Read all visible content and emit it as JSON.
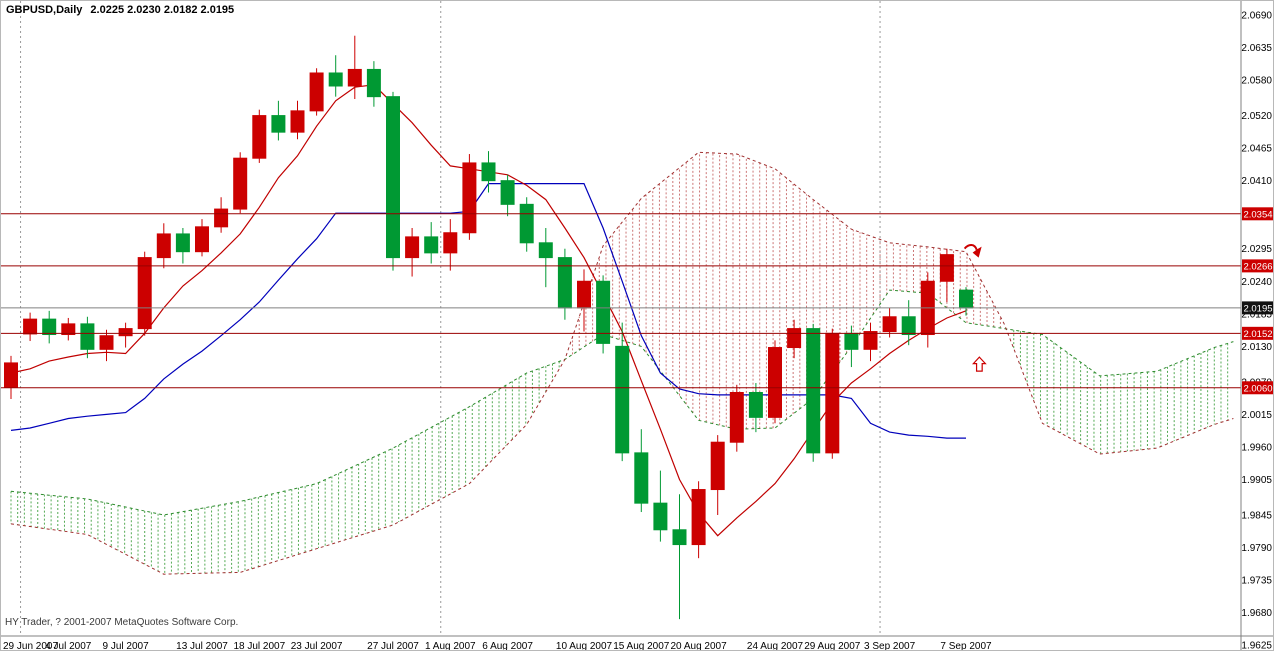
{
  "window": {
    "title_symbol": "GBPUSD,Daily",
    "title_ohlc": "2.0225 2.0230 2.0182 2.0195"
  },
  "footer": {
    "copyright": "HY Trader, ? 2001-2007 MetaQuotes Software Corp."
  },
  "colors": {
    "background": "#ffffff",
    "up": "#cc0000",
    "down": "#009933",
    "tenkan": "#c00000",
    "kijun": "#0000bb",
    "span_a": "#2e8b2e",
    "span_b": "#a03030",
    "hatch_up": "#55aa55",
    "hatch_down": "#cc7777",
    "sr_line": "#990000",
    "bid_line": "#808080",
    "badge_red": "#cc0000",
    "badge_dark": "#111111",
    "separator": "#999999",
    "axis_line": "#808080",
    "axis_text": "#000000"
  },
  "chart_data": {
    "type": "candlestick",
    "symbol": "GBPUSD",
    "timeframe": "Daily",
    "indicator": "Ichimoku Kinko Hyo",
    "title": "GBPUSD,Daily",
    "current_bar": {
      "open": 2.0225,
      "high": 2.023,
      "low": 2.0182,
      "close": 2.0195
    },
    "ylim": [
      1.9625,
      2.069
    ],
    "grid": "off",
    "legend": "none",
    "price_ticks": [
      {
        "p": 2.069,
        "label": "2.0690"
      },
      {
        "p": 2.0635,
        "label": "2.0635"
      },
      {
        "p": 2.058,
        "label": "2.0580"
      },
      {
        "p": 2.052,
        "label": "2.0520"
      },
      {
        "p": 2.0465,
        "label": "2.0465"
      },
      {
        "p": 2.041,
        "label": "2.0410"
      },
      {
        "p": 2.035,
        "label": "2.0350"
      },
      {
        "p": 2.0295,
        "label": "2.0295"
      },
      {
        "p": 2.024,
        "label": "2.0240"
      },
      {
        "p": 2.0185,
        "label": "2.0185"
      },
      {
        "p": 2.013,
        "label": "2.0130"
      },
      {
        "p": 2.007,
        "label": "2.0070"
      },
      {
        "p": 2.0015,
        "label": "2.0015"
      },
      {
        "p": 1.996,
        "label": "1.9960"
      },
      {
        "p": 1.9905,
        "label": "1.9905"
      },
      {
        "p": 1.9845,
        "label": "1.9845"
      },
      {
        "p": 1.979,
        "label": "1.9790"
      },
      {
        "p": 1.9735,
        "label": "1.9735"
      },
      {
        "p": 1.968,
        "label": "1.9680"
      },
      {
        "p": 1.9625,
        "label": "1.9625"
      }
    ],
    "date_labels": [
      {
        "bar": 0,
        "label": "29 Jun 2007"
      },
      {
        "bar": 3,
        "label": "4 Jul 2007"
      },
      {
        "bar": 6,
        "label": "9 Jul 2007"
      },
      {
        "bar": 10,
        "label": "13 Jul 2007"
      },
      {
        "bar": 13,
        "label": "18 Jul 2007"
      },
      {
        "bar": 16,
        "label": "23 Jul 2007"
      },
      {
        "bar": 20,
        "label": "27 Jul 2007"
      },
      {
        "bar": 23,
        "label": "1 Aug 2007"
      },
      {
        "bar": 26,
        "label": "6 Aug 2007"
      },
      {
        "bar": 30,
        "label": "10 Aug 2007"
      },
      {
        "bar": 33,
        "label": "15 Aug 2007"
      },
      {
        "bar": 36,
        "label": "20 Aug 2007"
      },
      {
        "bar": 40,
        "label": "24 Aug 2007"
      },
      {
        "bar": 43,
        "label": "29 Aug 2007"
      },
      {
        "bar": 46,
        "label": "3 Sep 2007"
      },
      {
        "bar": 50,
        "label": "7 Sep 2007"
      }
    ],
    "candles": [
      {
        "d": "29 Jun 2007",
        "o": 2.0061,
        "h": 2.0114,
        "l": 2.0041,
        "c": 2.0102
      },
      {
        "d": "2 Jul 2007",
        "o": 2.0151,
        "h": 2.0187,
        "l": 2.0139,
        "c": 2.0176
      },
      {
        "d": "3 Jul 2007",
        "o": 2.0176,
        "h": 2.019,
        "l": 2.0135,
        "c": 2.015
      },
      {
        "d": "4 Jul 2007",
        "o": 2.015,
        "h": 2.0178,
        "l": 2.014,
        "c": 2.0168
      },
      {
        "d": "5 Jul 2007",
        "o": 2.0168,
        "h": 2.018,
        "l": 2.011,
        "c": 2.0125
      },
      {
        "d": "6 Jul 2007",
        "o": 2.0125,
        "h": 2.0158,
        "l": 2.0105,
        "c": 2.0148
      },
      {
        "d": "9 Jul 2007",
        "o": 2.0148,
        "h": 2.017,
        "l": 2.0128,
        "c": 2.016
      },
      {
        "d": "10 Jul 2007",
        "o": 2.016,
        "h": 2.029,
        "l": 2.0148,
        "c": 2.028
      },
      {
        "d": "11 Jul 2007",
        "o": 2.028,
        "h": 2.0338,
        "l": 2.0262,
        "c": 2.032
      },
      {
        "d": "12 Jul 2007",
        "o": 2.032,
        "h": 2.033,
        "l": 2.027,
        "c": 2.029
      },
      {
        "d": "13 Jul 2007",
        "o": 2.029,
        "h": 2.0345,
        "l": 2.0282,
        "c": 2.0332
      },
      {
        "d": "16 Jul 2007",
        "o": 2.0332,
        "h": 2.0382,
        "l": 2.0322,
        "c": 2.0362
      },
      {
        "d": "17 Jul 2007",
        "o": 2.0362,
        "h": 2.0458,
        "l": 2.0355,
        "c": 2.0448
      },
      {
        "d": "18 Jul 2007",
        "o": 2.0448,
        "h": 2.053,
        "l": 2.044,
        "c": 2.052
      },
      {
        "d": "19 Jul 2007",
        "o": 2.052,
        "h": 2.0545,
        "l": 2.0478,
        "c": 2.0492
      },
      {
        "d": "20 Jul 2007",
        "o": 2.0492,
        "h": 2.0545,
        "l": 2.048,
        "c": 2.0528
      },
      {
        "d": "23 Jul 2007",
        "o": 2.0528,
        "h": 2.06,
        "l": 2.052,
        "c": 2.0592
      },
      {
        "d": "24 Jul 2007",
        "o": 2.0592,
        "h": 2.0622,
        "l": 2.0552,
        "c": 2.057
      },
      {
        "d": "25 Jul 2007",
        "o": 2.057,
        "h": 2.0655,
        "l": 2.0548,
        "c": 2.0598
      },
      {
        "d": "26 Jul 2007",
        "o": 2.0598,
        "h": 2.0612,
        "l": 2.0535,
        "c": 2.0552
      },
      {
        "d": "27 Jul 2007",
        "o": 2.0552,
        "h": 2.056,
        "l": 2.0258,
        "c": 2.028
      },
      {
        "d": "30 Jul 2007",
        "o": 2.028,
        "h": 2.033,
        "l": 2.0248,
        "c": 2.0315
      },
      {
        "d": "31 Jul 2007",
        "o": 2.0315,
        "h": 2.034,
        "l": 2.027,
        "c": 2.0288
      },
      {
        "d": "1 Aug 2007",
        "o": 2.0288,
        "h": 2.0345,
        "l": 2.0258,
        "c": 2.0322
      },
      {
        "d": "2 Aug 2007",
        "o": 2.0322,
        "h": 2.0455,
        "l": 2.031,
        "c": 2.044
      },
      {
        "d": "3 Aug 2007",
        "o": 2.044,
        "h": 2.046,
        "l": 2.039,
        "c": 2.041
      },
      {
        "d": "6 Aug 2007",
        "o": 2.041,
        "h": 2.042,
        "l": 2.035,
        "c": 2.037
      },
      {
        "d": "7 Aug 2007",
        "o": 2.037,
        "h": 2.0382,
        "l": 2.029,
        "c": 2.0305
      },
      {
        "d": "8 Aug 2007",
        "o": 2.0305,
        "h": 2.033,
        "l": 2.023,
        "c": 2.028
      },
      {
        "d": "9 Aug 2007",
        "o": 2.028,
        "h": 2.0295,
        "l": 2.0175,
        "c": 2.0195
      },
      {
        "d": "10 Aug 2007",
        "o": 2.0195,
        "h": 2.026,
        "l": 2.0155,
        "c": 2.024
      },
      {
        "d": "13 Aug 2007",
        "o": 2.024,
        "h": 2.025,
        "l": 2.0118,
        "c": 2.0135
      },
      {
        "d": "14 Aug 2007",
        "o": 2.013,
        "h": 2.017,
        "l": 1.9936,
        "c": 1.995
      },
      {
        "d": "15 Aug 2007",
        "o": 1.995,
        "h": 1.999,
        "l": 1.985,
        "c": 1.9865
      },
      {
        "d": "16 Aug 2007",
        "o": 1.9865,
        "h": 1.992,
        "l": 1.98,
        "c": 1.982
      },
      {
        "d": "17 Aug 2007",
        "o": 1.982,
        "h": 1.988,
        "l": 1.9669,
        "c": 1.9795
      },
      {
        "d": "20 Aug 2007",
        "o": 1.9795,
        "h": 1.9902,
        "l": 1.9772,
        "c": 1.9888
      },
      {
        "d": "21 Aug 2007",
        "o": 1.9888,
        "h": 1.998,
        "l": 1.9845,
        "c": 1.9968
      },
      {
        "d": "22 Aug 2007",
        "o": 1.9968,
        "h": 2.0065,
        "l": 1.9952,
        "c": 2.0052
      },
      {
        "d": "23 Aug 2007",
        "o": 2.0052,
        "h": 2.0068,
        "l": 1.9985,
        "c": 2.001
      },
      {
        "d": "24 Aug 2007",
        "o": 2.001,
        "h": 2.014,
        "l": 2.0,
        "c": 2.0128
      },
      {
        "d": "27 Aug 2007",
        "o": 2.0128,
        "h": 2.0175,
        "l": 2.011,
        "c": 2.016
      },
      {
        "d": "28 Aug 2007",
        "o": 2.016,
        "h": 2.0168,
        "l": 1.9935,
        "c": 1.995
      },
      {
        "d": "29 Aug 2007",
        "o": 1.995,
        "h": 2.016,
        "l": 1.994,
        "c": 2.0152
      },
      {
        "d": "30 Aug 2007",
        "o": 2.0152,
        "h": 2.0165,
        "l": 2.0095,
        "c": 2.0125
      },
      {
        "d": "31 Aug 2007",
        "o": 2.0125,
        "h": 2.017,
        "l": 2.0105,
        "c": 2.0155
      },
      {
        "d": "3 Sep 2007",
        "o": 2.0155,
        "h": 2.0195,
        "l": 2.0145,
        "c": 2.018
      },
      {
        "d": "4 Sep 2007",
        "o": 2.018,
        "h": 2.0208,
        "l": 2.0132,
        "c": 2.015
      },
      {
        "d": "5 Sep 2007",
        "o": 2.015,
        "h": 2.0255,
        "l": 2.0128,
        "c": 2.024
      },
      {
        "d": "6 Sep 2007",
        "o": 2.024,
        "h": 2.0295,
        "l": 2.0205,
        "c": 2.0285
      },
      {
        "d": "7 Sep 2007",
        "o": 2.0225,
        "h": 2.023,
        "l": 2.0182,
        "c": 2.0195
      }
    ],
    "ichimoku": {
      "tenkan": [
        2.0085,
        2.0092,
        2.0105,
        2.0112,
        2.0118,
        2.012,
        2.0118,
        2.0152,
        2.0195,
        2.0232,
        2.0258,
        2.0288,
        2.032,
        2.0365,
        2.0415,
        2.0452,
        2.0502,
        2.0545,
        2.0568,
        2.0572,
        2.054,
        2.0508,
        2.047,
        2.0435,
        2.043,
        2.0425,
        2.042,
        2.0402,
        2.0378,
        2.033,
        2.028,
        2.0218,
        2.0155,
        2.0072,
        1.999,
        1.9905,
        1.9848,
        1.981,
        1.984,
        1.9868,
        1.9898,
        1.994,
        1.9988,
        2.0035,
        2.0068,
        2.0092,
        2.0118,
        2.014,
        2.016,
        2.0178,
        2.019
      ],
      "kijun": [
        1.9988,
        1.9992,
        2.0,
        2.0008,
        2.0012,
        2.0015,
        2.0018,
        2.0042,
        2.0075,
        2.01,
        2.0122,
        2.0148,
        2.0175,
        2.0205,
        2.0242,
        2.0278,
        2.0312,
        2.0355,
        2.0355,
        2.0355,
        2.0355,
        2.0355,
        2.0355,
        2.0355,
        2.0358,
        2.0405,
        2.0405,
        2.0405,
        2.0405,
        2.0405,
        2.0405,
        2.033,
        2.024,
        2.0148,
        2.0085,
        2.0058,
        2.005,
        2.0048,
        2.0048,
        2.0048,
        2.0048,
        2.0048,
        2.0048,
        2.0048,
        2.0042,
        2.0,
        1.9985,
        1.998,
        1.9978,
        1.9975,
        1.9975
      ],
      "cloud": [
        [
          0,
          1.9885,
          1.983
        ],
        [
          4,
          1.9872,
          1.9812
        ],
        [
          8,
          1.9845,
          1.9745
        ],
        [
          12,
          1.9868,
          1.9748
        ],
        [
          16,
          1.9898,
          1.9788
        ],
        [
          20,
          1.9958,
          1.9828
        ],
        [
          24,
          2.0028,
          1.9898
        ],
        [
          27,
          2.0085,
          1.9998
        ],
        [
          29,
          2.0108,
          2.0108
        ],
        [
          31,
          2.015,
          2.03
        ],
        [
          33,
          2.013,
          2.038
        ],
        [
          36,
          2.0005,
          2.0458
        ],
        [
          38,
          1.999,
          2.0455
        ],
        [
          40,
          1.9992,
          2.043
        ],
        [
          42,
          2.0042,
          2.0378
        ],
        [
          44,
          2.013,
          2.0328
        ],
        [
          46,
          2.0225,
          2.0305
        ],
        [
          48,
          2.022,
          2.0298
        ],
        [
          50,
          2.017,
          2.029
        ],
        [
          52,
          2.016,
          2.0168
        ],
        [
          54,
          2.015,
          2.0
        ],
        [
          57,
          2.008,
          1.9948
        ],
        [
          60,
          2.0088,
          1.9958
        ],
        [
          63,
          2.0128,
          1.9998
        ],
        [
          64,
          2.0138,
          2.0008
        ]
      ]
    },
    "hlines": [
      {
        "p": 2.0354,
        "label": "2.0354"
      },
      {
        "p": 2.0266,
        "label": "2.0266"
      },
      {
        "p": 2.0152,
        "label": "2.0152"
      },
      {
        "p": 2.006,
        "label": "2.0060"
      }
    ],
    "bid_line": {
      "p": 2.0195,
      "label": "2.0195"
    },
    "separators": [
      1,
      23,
      46
    ],
    "arrows": [
      {
        "bar": 50.4,
        "p": 2.029,
        "type": "curved-down"
      },
      {
        "bar": 50.7,
        "p": 2.01,
        "type": "up-outline"
      }
    ]
  }
}
